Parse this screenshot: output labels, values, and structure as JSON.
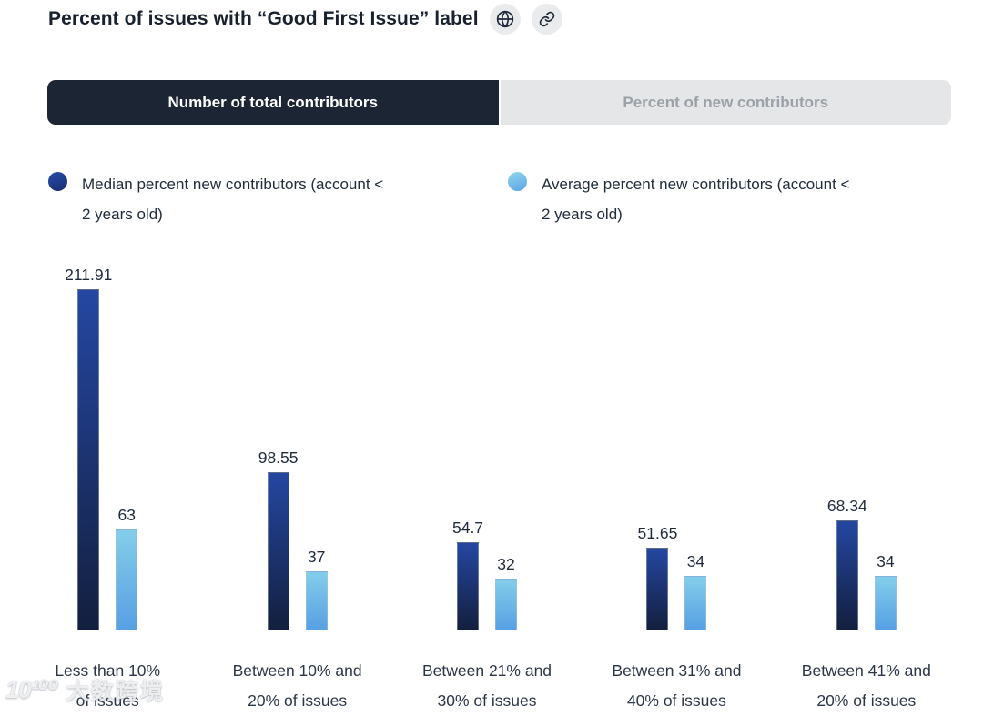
{
  "header": {
    "title": "Percent of issues with “Good First Issue” label"
  },
  "tabs": {
    "active": "Number of total contributors",
    "inactive": "Percent of new contributors"
  },
  "legend": {
    "items": [
      {
        "lines": [
          "Median percent new contributors (account <",
          "2 years old)"
        ],
        "color": "#1c3c8e"
      },
      {
        "lines": [
          "Average percent new contributors (account <",
          "2 years old)"
        ],
        "color": "#74c6ea"
      }
    ]
  },
  "chart_data": {
    "type": "bar",
    "title": "Percent of issues with “Good First Issue” label",
    "categories": [
      "Less than 10% of issues",
      "Between 10% and 20% of issues",
      "Between 21% and 30% of issues",
      "Between 31% and 40% of issues",
      "Between 41% and 20% of issues"
    ],
    "category_lines": [
      [
        "Less than 10%",
        "of issues"
      ],
      [
        "Between 10% and",
        "20% of issues"
      ],
      [
        "Between 21% and",
        "30% of issues"
      ],
      [
        "Between 31% and",
        "40% of issues"
      ],
      [
        "Between 41% and",
        "20% of issues"
      ]
    ],
    "series": [
      {
        "name": "Median percent new contributors (account < 2 years old)",
        "values": [
          211.91,
          98.55,
          54.7,
          51.65,
          68.34
        ],
        "gradient": [
          "#2547a2",
          "#131f3e"
        ]
      },
      {
        "name": "Average percent new contributors (account < 2 years old)",
        "values": [
          63,
          37,
          32,
          34,
          34
        ],
        "gradient": [
          "#83cdea",
          "#57a0e3"
        ]
      }
    ],
    "ylim": [
      0,
      211.91
    ],
    "grid": false,
    "legend_position": "top",
    "value_labels_shown": true
  },
  "watermark": {
    "logo": "10¹⁰⁰",
    "text": "大数跨境"
  }
}
